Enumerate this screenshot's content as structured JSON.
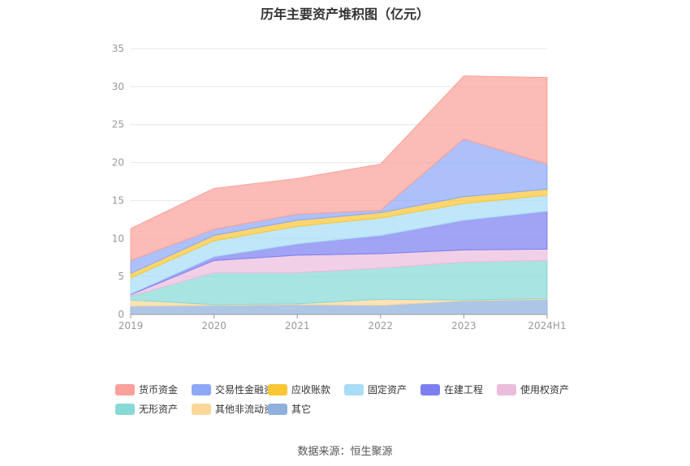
{
  "chart_data": {
    "type": "area",
    "stacked": true,
    "title": "历年主要资产堆积图（亿元）",
    "categories": [
      "2019",
      "2020",
      "2021",
      "2022",
      "2023",
      "2024H1"
    ],
    "ylim": [
      0,
      35
    ],
    "yticks": [
      0,
      5,
      10,
      15,
      20,
      25,
      30,
      35
    ],
    "grid": true,
    "legend_position": "bottom",
    "series": [
      {
        "name": "其它",
        "color": "#8fb0dc",
        "values": [
          1.1,
          1.2,
          1.3,
          1.2,
          1.8,
          2.0
        ]
      },
      {
        "name": "其他非流动资产",
        "color": "#fcd79b",
        "values": [
          0.8,
          0.1,
          0.1,
          0.8,
          0.1,
          0.1
        ]
      },
      {
        "name": "无形资产",
        "color": "#87d9d6",
        "values": [
          0.5,
          4.2,
          4.1,
          4.1,
          5.0,
          5.0
        ]
      },
      {
        "name": "使用权资产",
        "color": "#ebbcdc",
        "values": [
          0.2,
          1.6,
          2.3,
          1.9,
          1.6,
          1.5
        ]
      },
      {
        "name": "在建工程",
        "color": "#7d7ff0",
        "values": [
          0.1,
          0.5,
          1.5,
          2.4,
          3.9,
          5.0
        ]
      },
      {
        "name": "固定资产",
        "color": "#a8dcf7",
        "values": [
          2.1,
          2.1,
          2.3,
          2.3,
          2.2,
          2.1
        ]
      },
      {
        "name": "应收账款",
        "color": "#fbc634",
        "values": [
          0.6,
          0.7,
          0.8,
          0.7,
          0.9,
          0.8
        ]
      },
      {
        "name": "交易性金融资产",
        "color": "#8ea7f7",
        "values": [
          1.7,
          0.8,
          0.8,
          0.3,
          7.6,
          3.3
        ]
      },
      {
        "name": "货币资金",
        "color": "#f9a19a",
        "values": [
          4.2,
          5.4,
          4.7,
          6.1,
          8.3,
          11.4
        ]
      }
    ]
  },
  "legend": {
    "items": [
      {
        "label": "货币资金",
        "color": "#f9a19a"
      },
      {
        "label": "交易性金融资产",
        "color": "#8ea7f7"
      },
      {
        "label": "应收账款",
        "color": "#fbc634"
      },
      {
        "label": "固定资产",
        "color": "#a8dcf7"
      },
      {
        "label": "在建工程",
        "color": "#7d7ff0"
      },
      {
        "label": "使用权资产",
        "color": "#ebbcdc"
      },
      {
        "label": "无形资产",
        "color": "#87d9d6"
      },
      {
        "label": "其他非流动资产",
        "color": "#fcd79b"
      },
      {
        "label": "其它",
        "color": "#8fb0dc"
      }
    ]
  },
  "source": "数据来源：恒生聚源"
}
